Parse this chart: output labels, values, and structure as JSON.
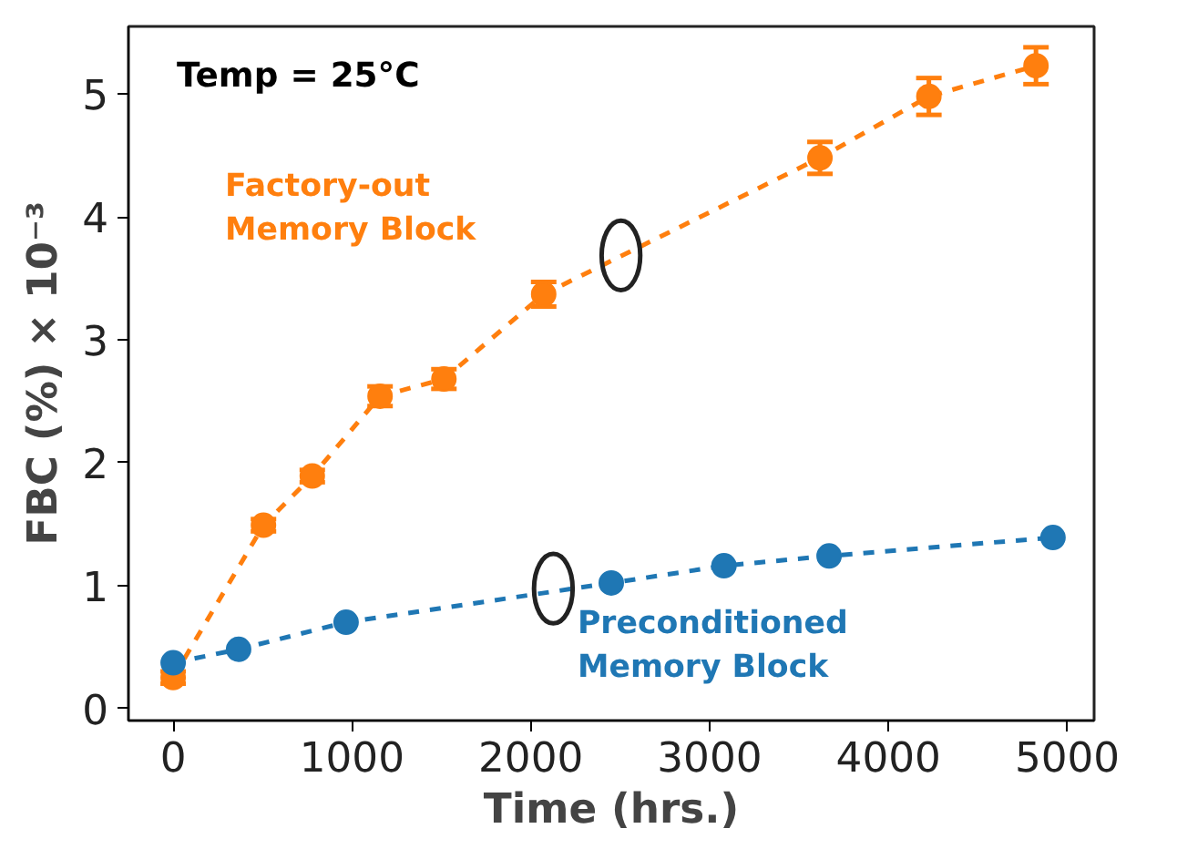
{
  "chart_data": {
    "type": "line",
    "xlabel": "Time (hrs.)",
    "ylabel": "FBC (%) × 10⁻³",
    "annotations": [
      "Temp = 25°C"
    ],
    "series": [
      {
        "name": "Factory-out\nMemory Block",
        "color": "#ff7f0e",
        "x": [
          0,
          505,
          778,
          1157,
          1514,
          2072,
          3617,
          4226,
          4825
        ],
        "values": [
          0.25,
          1.49,
          1.89,
          2.54,
          2.68,
          3.37,
          4.48,
          4.98,
          5.23
        ],
        "errors": [
          0.05,
          0.05,
          0.05,
          0.08,
          0.08,
          0.1,
          0.13,
          0.15,
          0.15
        ]
      },
      {
        "name": "Preconditioned\nMemory Block",
        "color": "#1f77b4",
        "x": [
          0,
          366,
          967,
          2450,
          3080,
          3668,
          4920
        ],
        "values": [
          0.37,
          0.48,
          0.7,
          1.02,
          1.16,
          1.24,
          1.39
        ]
      }
    ],
    "xlim": [
      -250,
      5150
    ],
    "ylim": [
      -0.1,
      5.55
    ],
    "xticks": [
      0,
      1000,
      2000,
      3000,
      4000,
      5000
    ],
    "yticks": [
      0,
      1,
      2,
      3,
      4,
      5
    ],
    "marker": "circle",
    "line_style": "dashed",
    "grid": false
  }
}
